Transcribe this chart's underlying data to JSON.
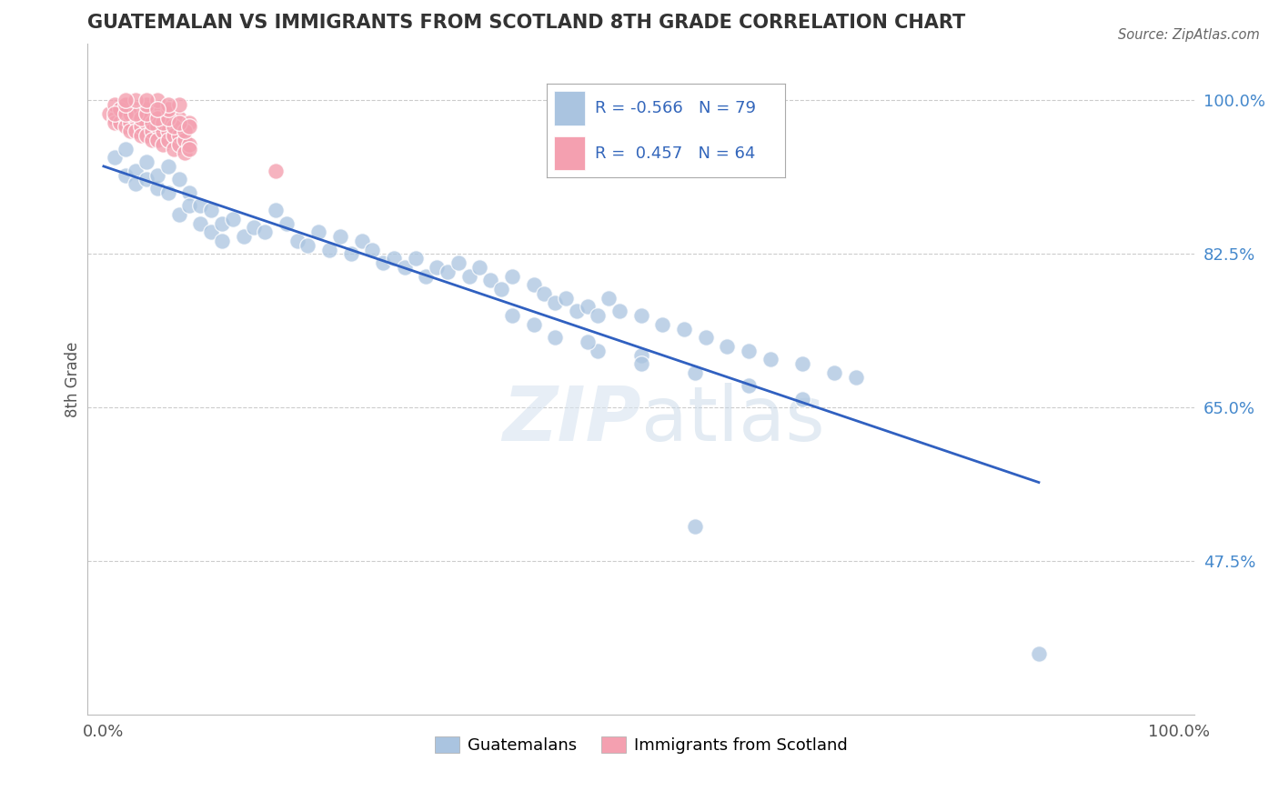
{
  "title": "GUATEMALAN VS IMMIGRANTS FROM SCOTLAND 8TH GRADE CORRELATION CHART",
  "source": "Source: ZipAtlas.com",
  "ylabel": "8th Grade",
  "r_blue": -0.566,
  "n_blue": 79,
  "r_pink": 0.457,
  "n_pink": 64,
  "blue_color": "#aac4e0",
  "pink_color": "#f4a0b0",
  "line_color": "#3060c0",
  "trend_x_start": 0.0,
  "trend_y_start": 0.925,
  "trend_x_end": 0.87,
  "trend_y_end": 0.565,
  "ymin": 0.3,
  "ymax": 1.065,
  "xmin": -0.015,
  "xmax": 1.015,
  "ytick_positions": [
    0.475,
    0.65,
    0.825,
    1.0
  ],
  "ytick_labels": [
    "47.5%",
    "65.0%",
    "82.5%",
    "100.0%"
  ],
  "blue_x": [
    0.01,
    0.02,
    0.02,
    0.03,
    0.03,
    0.04,
    0.04,
    0.05,
    0.05,
    0.06,
    0.06,
    0.07,
    0.07,
    0.08,
    0.08,
    0.09,
    0.09,
    0.1,
    0.1,
    0.11,
    0.11,
    0.12,
    0.13,
    0.14,
    0.15,
    0.16,
    0.17,
    0.18,
    0.19,
    0.2,
    0.21,
    0.22,
    0.23,
    0.24,
    0.25,
    0.26,
    0.27,
    0.28,
    0.29,
    0.3,
    0.31,
    0.32,
    0.33,
    0.34,
    0.35,
    0.36,
    0.37,
    0.38,
    0.4,
    0.41,
    0.42,
    0.43,
    0.44,
    0.45,
    0.46,
    0.47,
    0.48,
    0.5,
    0.52,
    0.54,
    0.56,
    0.58,
    0.6,
    0.62,
    0.65,
    0.68,
    0.7,
    0.38,
    0.42,
    0.46,
    0.5,
    0.55,
    0.6,
    0.65,
    0.4,
    0.45,
    0.5,
    0.87,
    0.55
  ],
  "blue_y": [
    0.935,
    0.915,
    0.945,
    0.92,
    0.905,
    0.91,
    0.93,
    0.9,
    0.915,
    0.895,
    0.925,
    0.91,
    0.87,
    0.895,
    0.88,
    0.88,
    0.86,
    0.875,
    0.85,
    0.86,
    0.84,
    0.865,
    0.845,
    0.855,
    0.85,
    0.875,
    0.86,
    0.84,
    0.835,
    0.85,
    0.83,
    0.845,
    0.825,
    0.84,
    0.83,
    0.815,
    0.82,
    0.81,
    0.82,
    0.8,
    0.81,
    0.805,
    0.815,
    0.8,
    0.81,
    0.795,
    0.785,
    0.8,
    0.79,
    0.78,
    0.77,
    0.775,
    0.76,
    0.765,
    0.755,
    0.775,
    0.76,
    0.755,
    0.745,
    0.74,
    0.73,
    0.72,
    0.715,
    0.705,
    0.7,
    0.69,
    0.685,
    0.755,
    0.73,
    0.715,
    0.71,
    0.69,
    0.675,
    0.66,
    0.745,
    0.725,
    0.7,
    0.37,
    0.515
  ],
  "pink_x": [
    0.005,
    0.01,
    0.01,
    0.015,
    0.02,
    0.02,
    0.025,
    0.025,
    0.03,
    0.03,
    0.035,
    0.035,
    0.04,
    0.04,
    0.045,
    0.045,
    0.05,
    0.05,
    0.055,
    0.055,
    0.06,
    0.06,
    0.065,
    0.065,
    0.07,
    0.07,
    0.075,
    0.075,
    0.08,
    0.08,
    0.01,
    0.02,
    0.03,
    0.04,
    0.05,
    0.06,
    0.07,
    0.08,
    0.015,
    0.025,
    0.035,
    0.045,
    0.055,
    0.065,
    0.075,
    0.01,
    0.02,
    0.03,
    0.04,
    0.05,
    0.06,
    0.07,
    0.08,
    0.02,
    0.04,
    0.06,
    0.03,
    0.05,
    0.07,
    0.04,
    0.06,
    0.02,
    0.05,
    0.16
  ],
  "pink_y": [
    0.985,
    0.98,
    0.975,
    0.975,
    0.98,
    0.97,
    0.975,
    0.965,
    0.98,
    0.965,
    0.97,
    0.96,
    0.975,
    0.96,
    0.965,
    0.955,
    0.97,
    0.955,
    0.965,
    0.95,
    0.965,
    0.955,
    0.96,
    0.945,
    0.96,
    0.95,
    0.955,
    0.94,
    0.95,
    0.945,
    0.995,
    0.995,
    0.99,
    0.99,
    0.985,
    0.985,
    0.98,
    0.975,
    0.99,
    0.985,
    0.98,
    0.975,
    0.975,
    0.97,
    0.965,
    0.985,
    0.985,
    0.985,
    0.985,
    0.98,
    0.98,
    0.975,
    0.97,
    0.995,
    0.995,
    0.99,
    1.0,
    1.0,
    0.995,
    1.0,
    0.995,
    1.0,
    0.99,
    0.92
  ]
}
